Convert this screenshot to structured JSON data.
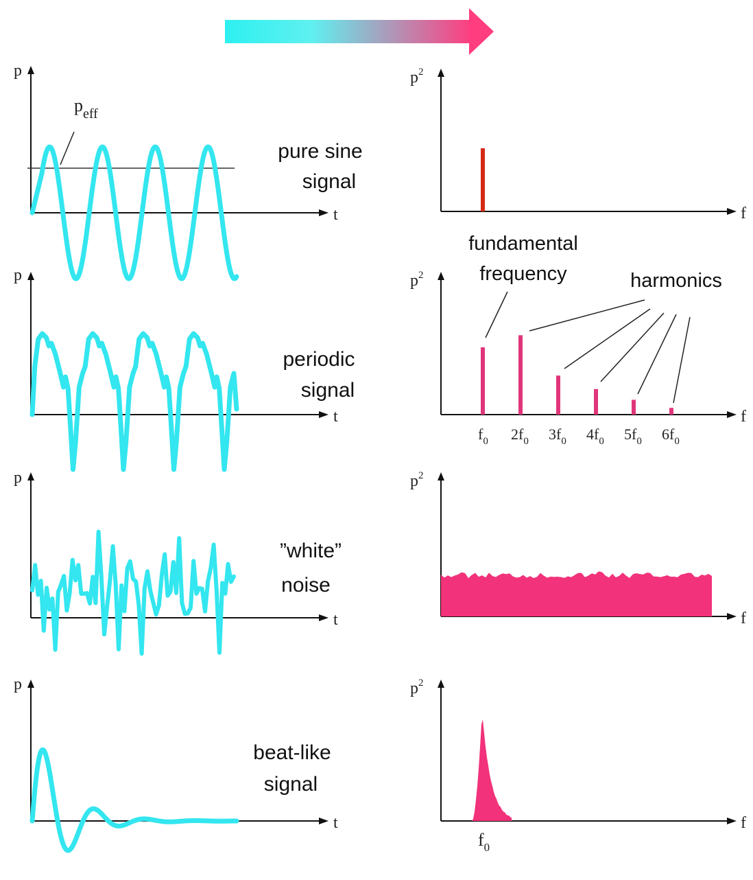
{
  "colors": {
    "signal": "#33e6ef",
    "spectrum_line": "#d42a16",
    "harmonic": "#e0357a",
    "spectrum_fill": "#f2327a",
    "arrow_start": "#2ef0f0",
    "arrow_end": "#ff3d7f",
    "axis": "#111111"
  },
  "arrow": {
    "direction": "right"
  },
  "rows": [
    {
      "id": "sine",
      "time_axes": {
        "y": "p",
        "x": "t"
      },
      "freq_axes": {
        "y": "p",
        "y_sup": "2",
        "x": "f"
      },
      "signal_label": [
        "pure sine",
        "signal"
      ],
      "peff_label": {
        "base": "p",
        "sub": "eff"
      }
    },
    {
      "id": "periodic",
      "time_axes": {
        "y": "p",
        "x": "t"
      },
      "freq_axes": {
        "y": "p",
        "y_sup": "2",
        "x": "f"
      },
      "signal_label": [
        "periodic",
        "signal"
      ],
      "annotation_fundamental": [
        "fundamental",
        "frequency"
      ],
      "annotation_harmonics": "harmonics",
      "harmonic_ticks": [
        {
          "coef": "",
          "base": "f",
          "sub": "0"
        },
        {
          "coef": "2",
          "base": "f",
          "sub": "0"
        },
        {
          "coef": "3",
          "base": "f",
          "sub": "0"
        },
        {
          "coef": "4",
          "base": "f",
          "sub": "0"
        },
        {
          "coef": "5",
          "base": "f",
          "sub": "0"
        },
        {
          "coef": "6",
          "base": "f",
          "sub": "0"
        }
      ],
      "harmonic_levels": [
        0.5,
        0.59,
        0.29,
        0.19,
        0.11,
        0.05
      ]
    },
    {
      "id": "noise",
      "time_axes": {
        "y": "p",
        "x": "t"
      },
      "freq_axes": {
        "y": "p",
        "y_sup": "2",
        "x": "f"
      },
      "signal_label": [
        "”white”",
        "noise"
      ]
    },
    {
      "id": "beat",
      "time_axes": {
        "y": "p",
        "x": "t"
      },
      "freq_axes": {
        "y": "p",
        "y_sup": "2",
        "x": "f"
      },
      "signal_label": [
        "beat-like",
        "signal"
      ],
      "peak_label": {
        "base": "f",
        "sub": "0"
      }
    }
  ]
}
